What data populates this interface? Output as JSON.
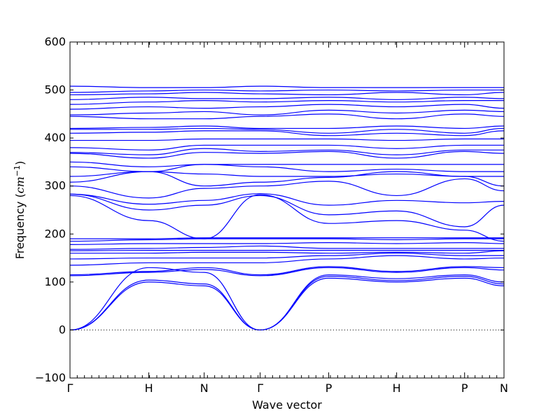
{
  "chart_data": {
    "type": "line",
    "title": "",
    "xlabel": "Wave vector",
    "ylabel_prefix": "Frequency (",
    "ylabel_unit_base": "cm",
    "ylabel_unit_exp": "−1",
    "ylabel_suffix": ")",
    "ylim": [
      -100,
      600
    ],
    "yticks": [
      -100,
      0,
      100,
      200,
      300,
      400,
      500,
      600
    ],
    "ytick_labels": [
      "−100",
      "0",
      "100",
      "200",
      "300",
      "400",
      "500",
      "600"
    ],
    "xlim": [
      0,
      7.6
    ],
    "high_symmetry_points": [
      {
        "label": "Γ",
        "x": 0.0
      },
      {
        "label": "H",
        "x": 1.38
      },
      {
        "label": "N",
        "x": 2.35
      },
      {
        "label": "Γ",
        "x": 3.33
      },
      {
        "label": "P",
        "x": 4.53
      },
      {
        "label": "H",
        "x": 5.72
      },
      {
        "label": "P",
        "x": 6.91
      },
      {
        "label": "N",
        "x": 7.6
      }
    ],
    "zero_line": true,
    "series_color": "#0000ff",
    "bands": [
      {
        "values": [
          0,
          100,
          92,
          0,
          108,
          100,
          108,
          92
        ]
      },
      {
        "values": [
          0,
          104,
          96,
          0,
          112,
          103,
          112,
          96
        ]
      },
      {
        "values": [
          0,
          130,
          120,
          0,
          115,
          107,
          115,
          100
        ]
      },
      {
        "values": [
          113,
          120,
          126,
          113,
          130,
          120,
          130,
          125
        ]
      },
      {
        "values": [
          115,
          122,
          130,
          115,
          132,
          122,
          132,
          130
        ]
      },
      {
        "values": [
          135,
          140,
          140,
          140,
          148,
          155,
          148,
          150
        ]
      },
      {
        "values": [
          148,
          150,
          150,
          150,
          155,
          160,
          155,
          155
        ]
      },
      {
        "values": [
          160,
          160,
          162,
          162,
          160,
          162,
          160,
          165
        ]
      },
      {
        "values": [
          165,
          166,
          166,
          166,
          166,
          166,
          166,
          166
        ]
      },
      {
        "values": [
          168,
          170,
          172,
          175,
          170,
          170,
          170,
          170
        ]
      },
      {
        "values": [
          178,
          180,
          180,
          180,
          182,
          180,
          182,
          180
        ]
      },
      {
        "values": [
          185,
          188,
          190,
          190,
          190,
          188,
          190,
          190
        ]
      },
      {
        "values": [
          190,
          190,
          192,
          192,
          192,
          192,
          192,
          192
        ]
      },
      {
        "values": [
          280,
          228,
          190,
          282,
          222,
          228,
          208,
          185
        ]
      },
      {
        "values": [
          283,
          250,
          260,
          280,
          240,
          248,
          215,
          260
        ]
      },
      {
        "values": [
          283,
          262,
          270,
          284,
          260,
          270,
          265,
          268
        ]
      },
      {
        "values": [
          300,
          275,
          295,
          300,
          310,
          280,
          315,
          290
        ]
      },
      {
        "values": [
          308,
          330,
          300,
          308,
          318,
          330,
          320,
          300
        ]
      },
      {
        "values": [
          320,
          330,
          325,
          320,
          320,
          325,
          320,
          320
        ]
      },
      {
        "values": [
          340,
          330,
          345,
          340,
          330,
          335,
          330,
          330
        ]
      },
      {
        "values": [
          350,
          340,
          345,
          345,
          345,
          345,
          345,
          345
        ]
      },
      {
        "values": [
          368,
          358,
          370,
          368,
          372,
          358,
          372,
          368
        ]
      },
      {
        "values": [
          370,
          365,
          378,
          372,
          375,
          365,
          375,
          375
        ]
      },
      {
        "values": [
          380,
          375,
          385,
          385,
          385,
          378,
          385,
          385
        ]
      },
      {
        "values": [
          395,
          395,
          398,
          398,
          398,
          395,
          398,
          398
        ]
      },
      {
        "values": [
          410,
          412,
          415,
          415,
          405,
          410,
          405,
          415
        ]
      },
      {
        "values": [
          418,
          418,
          420,
          418,
          410,
          418,
          410,
          420
        ]
      },
      {
        "values": [
          420,
          422,
          425,
          420,
          420,
          425,
          420,
          425
        ]
      },
      {
        "values": [
          445,
          440,
          440,
          445,
          450,
          440,
          450,
          445
        ]
      },
      {
        "values": [
          448,
          452,
          455,
          448,
          458,
          452,
          458,
          455
        ]
      },
      {
        "values": [
          460,
          465,
          462,
          465,
          470,
          465,
          470,
          462
        ]
      },
      {
        "values": [
          470,
          475,
          478,
          475,
          478,
          475,
          478,
          478
        ]
      },
      {
        "values": [
          480,
          485,
          482,
          482,
          485,
          480,
          485,
          482
        ]
      },
      {
        "values": [
          490,
          492,
          495,
          492,
          490,
          495,
          490,
          495
        ]
      },
      {
        "values": [
          495,
          498,
          500,
          498,
          500,
          498,
          500,
          500
        ]
      },
      {
        "values": [
          508,
          505,
          505,
          508,
          505,
          505,
          505,
          505
        ]
      }
    ]
  }
}
